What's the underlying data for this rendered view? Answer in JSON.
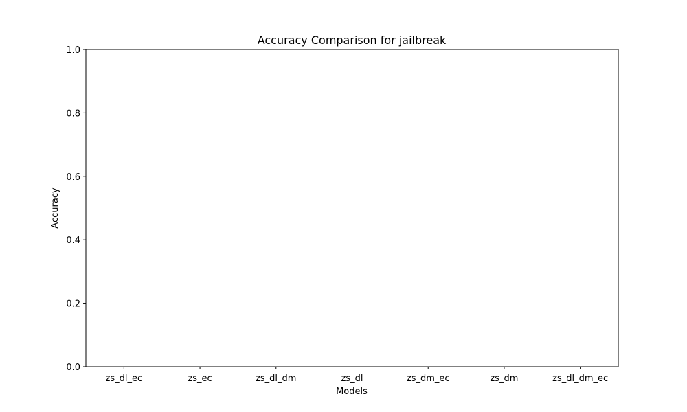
{
  "chart_data": {
    "type": "bar",
    "title": "Accuracy Comparison for jailbreak",
    "xlabel": "Models",
    "ylabel": "Accuracy",
    "categories": [
      "zs_dl_ec",
      "zs_ec",
      "zs_dl_dm",
      "zs_dl",
      "zs_dm_ec",
      "zs_dm",
      "zs_dl_dm_ec"
    ],
    "values": [
      0,
      0,
      0,
      0,
      0,
      0,
      0
    ],
    "ylim": [
      0,
      1
    ],
    "yticks": [
      "0.0",
      "0.2",
      "0.4",
      "0.6",
      "0.8",
      "1.0"
    ],
    "grid": false,
    "legend": "none"
  }
}
